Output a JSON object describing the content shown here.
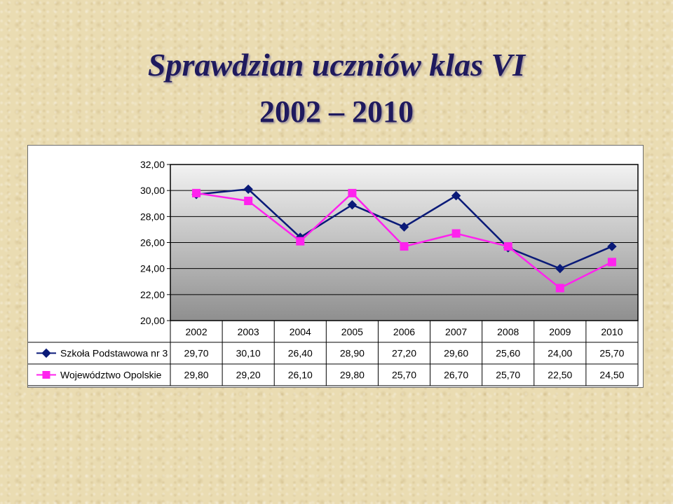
{
  "title": {
    "line1": "Sprawdzian uczniów klas VI",
    "line2": "2002 – 2010"
  },
  "colors": {
    "series1": "#0a1a78",
    "series2": "#ff22ee",
    "plot_top": "#f2f2f2",
    "plot_bottom": "#8f8f8f"
  },
  "chart_data": {
    "type": "line",
    "x": [
      "2002",
      "2003",
      "2004",
      "2005",
      "2006",
      "2007",
      "2008",
      "2009",
      "2010"
    ],
    "y_ticks": [
      "32,00",
      "30,00",
      "28,00",
      "26,00",
      "24,00",
      "22,00",
      "20,00"
    ],
    "ylim": [
      20,
      32
    ],
    "grid": true,
    "legend": "data-table-left",
    "marker_icons": [
      "diamond-icon",
      "square-icon"
    ],
    "series": [
      {
        "name": "Szkoła Podstawowa nr 3",
        "values": [
          29.7,
          30.1,
          26.4,
          28.9,
          27.2,
          29.6,
          25.6,
          24.0,
          25.7
        ],
        "labels": [
          "29,70",
          "30,10",
          "26,40",
          "28,90",
          "27,20",
          "29,60",
          "25,60",
          "24,00",
          "25,70"
        ]
      },
      {
        "name": "Województwo Opolskie",
        "values": [
          29.8,
          29.2,
          26.1,
          29.8,
          25.7,
          26.7,
          25.7,
          22.5,
          24.5
        ],
        "labels": [
          "29,80",
          "29,20",
          "26,10",
          "29,80",
          "25,70",
          "26,70",
          "25,70",
          "22,50",
          "24,50"
        ]
      }
    ]
  }
}
